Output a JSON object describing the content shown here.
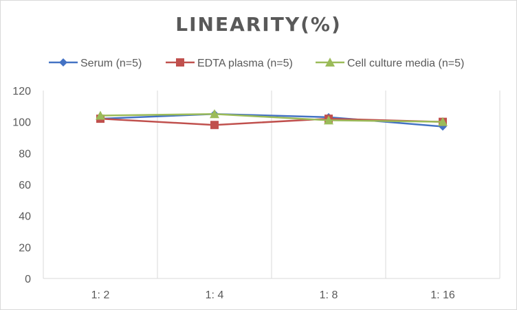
{
  "chart_data": {
    "type": "line",
    "title": "LINEARITY(%)",
    "xlabel": "",
    "ylabel": "",
    "categories": [
      "1:2",
      "1:4",
      "1:8",
      "1:16"
    ],
    "ylim": [
      0,
      120
    ],
    "yticks": [
      0,
      20,
      40,
      60,
      80,
      100,
      120
    ],
    "grid": "vertical",
    "legend_position": "top",
    "series": [
      {
        "name": "Serum (n=5)",
        "values": [
          102,
          105,
          103,
          97
        ],
        "color": "#4472c4",
        "marker": "diamond"
      },
      {
        "name": "EDTA plasma (n=5)",
        "values": [
          102,
          98,
          102,
          100
        ],
        "color": "#c0504d",
        "marker": "square"
      },
      {
        "name": "Cell culture media (n=5)",
        "values": [
          104,
          105,
          101,
          100
        ],
        "color": "#9bbb59",
        "marker": "triangle"
      }
    ]
  }
}
